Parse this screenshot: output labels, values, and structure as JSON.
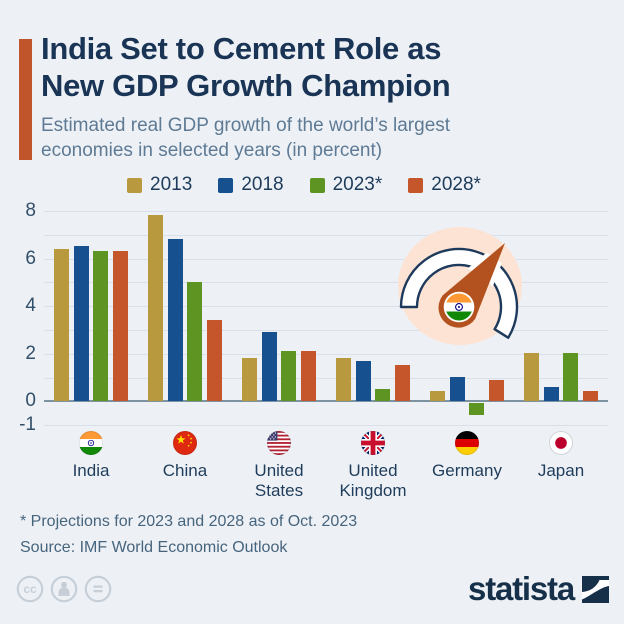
{
  "header": {
    "accent_color": "#c0552b",
    "title_lines": [
      "India Set to Cement Role as",
      "New GDP Growth Champion"
    ],
    "subtitle_lines": [
      "Estimated real GDP growth of the world’s largest",
      "economies in selected years (in percent)"
    ]
  },
  "chart_data": {
    "type": "bar",
    "title": "India Set to Cement Role as New GDP Growth Champion",
    "subtitle": "Estimated real GDP growth of the world's largest economies in selected years (in percent)",
    "categories": [
      "India",
      "China",
      "United States",
      "United Kingdom",
      "Germany",
      "Japan"
    ],
    "category_flags": [
      "india-flag",
      "china-flag",
      "united-states-flag",
      "united-kingdom-flag",
      "germany-flag",
      "japan-flag"
    ],
    "series": [
      {
        "name": "2013",
        "color": "#b9993e",
        "values": [
          6.4,
          7.8,
          1.8,
          1.8,
          0.4,
          2.0
        ]
      },
      {
        "name": "2018",
        "color": "#17508f",
        "values": [
          6.5,
          6.8,
          2.9,
          1.7,
          1.0,
          0.6
        ]
      },
      {
        "name": "2023*",
        "color": "#5d9422",
        "values": [
          6.3,
          5.0,
          2.1,
          0.5,
          -0.5,
          2.0
        ]
      },
      {
        "name": "2028*",
        "color": "#c5552a",
        "values": [
          6.3,
          3.4,
          2.1,
          1.5,
          0.9,
          0.4
        ]
      }
    ],
    "ylabel": "",
    "unit": "percent",
    "ylim": [
      -1,
      8
    ],
    "yticks": [
      8,
      6,
      4,
      2,
      0,
      -1
    ],
    "grid": true,
    "legend_position": "top"
  },
  "illustration": {
    "name": "speedometer-with-india-flag-needle",
    "circle_color": "#fce3d3",
    "needle_color": "#b4521f",
    "arc_outline_color": "#1d3a5c"
  },
  "footer": {
    "footnote": "* Projections for 2023 and 2028 as of Oct. 2023",
    "source": "Source: IMF World Economic Outlook",
    "brand": "statista",
    "license_icons": [
      "cc-icon",
      "attribution-person-icon",
      "equals-icon"
    ]
  },
  "colors": {
    "background": "#edf1f6",
    "title": "#193454",
    "subtitle": "#5e7a94",
    "grid": "#d9e0e9",
    "zero_line": "#7e93a2",
    "tick_label": "#33506b",
    "country_label": "#1f3c5a",
    "footnote": "#47647d",
    "brand_navy": "#16304a"
  }
}
